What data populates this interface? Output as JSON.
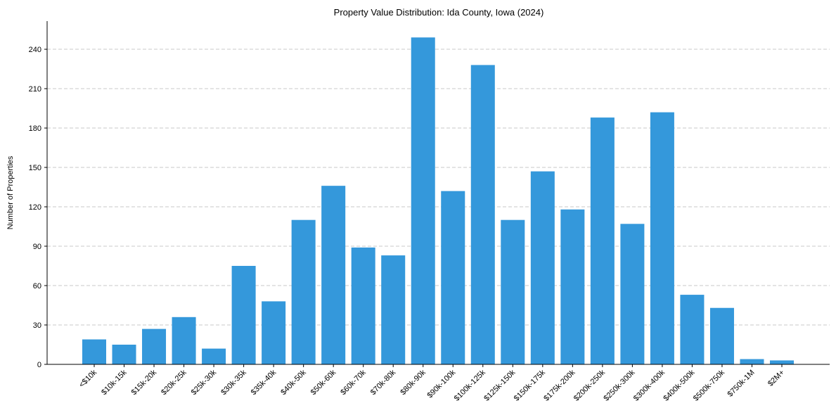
{
  "chart_data": {
    "type": "bar",
    "title": "Property Value Distribution: Ida County, Iowa (2024)",
    "xlabel": "",
    "ylabel": "Number of Properties",
    "categories": [
      "<$10k",
      "$10k-15k",
      "$15k-20k",
      "$20k-25k",
      "$25k-30k",
      "$30k-35k",
      "$35k-40k",
      "$40k-50k",
      "$50k-60k",
      "$60k-70k",
      "$70k-80k",
      "$80k-90k",
      "$90k-100k",
      "$100k-125k",
      "$125k-150k",
      "$150k-175k",
      "$175k-200k",
      "$200k-250k",
      "$250k-300k",
      "$300k-400k",
      "$400k-500k",
      "$500k-750k",
      "$750k-1M",
      "$2M+"
    ],
    "values": [
      19,
      15,
      27,
      36,
      12,
      75,
      48,
      110,
      136,
      89,
      83,
      249,
      132,
      228,
      110,
      147,
      118,
      188,
      107,
      192,
      53,
      43,
      4,
      3
    ],
    "yticks": [
      0,
      30,
      60,
      90,
      120,
      150,
      180,
      210,
      240
    ],
    "ylim": [
      0,
      261.45
    ],
    "grid": "y-dashed",
    "bar_color": "#3498db",
    "grid_color": "#c8c8c8"
  }
}
